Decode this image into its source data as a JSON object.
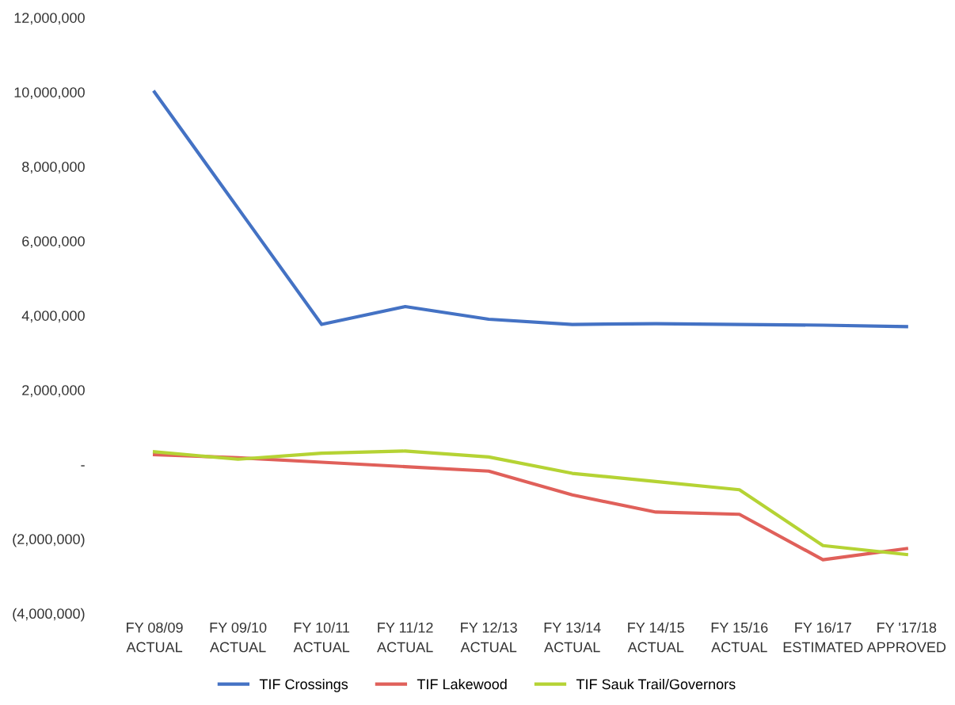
{
  "chart_data": {
    "type": "line",
    "categories": [
      "FY 08/09\nACTUAL",
      "FY 09/10\nACTUAL",
      "FY 10/11\nACTUAL",
      "FY 11/12\nACTUAL",
      "FY 12/13\nACTUAL",
      "FY 13/14\nACTUAL",
      "FY 14/15\nACTUAL",
      "FY 15/16\nACTUAL",
      "FY 16/17\nESTIMATED",
      "FY '17/18\nAPPROVED"
    ],
    "series": [
      {
        "name": "TIF Crossings",
        "color": "#4472c4",
        "values": [
          10000000,
          6880000,
          3760000,
          4240000,
          3900000,
          3760000,
          3780000,
          3760000,
          3740000,
          3700000
        ]
      },
      {
        "name": "TIF Lakewood",
        "color": "#e0605a",
        "values": [
          260000,
          180000,
          60000,
          -60000,
          -180000,
          -820000,
          -1280000,
          -1340000,
          -2560000,
          -2260000
        ]
      },
      {
        "name": "TIF Sauk Trail/Governors",
        "color": "#b5d334",
        "values": [
          340000,
          140000,
          300000,
          360000,
          200000,
          -240000,
          -460000,
          -680000,
          -2180000,
          -2420000
        ]
      }
    ],
    "ylim": [
      -4000000,
      12000000
    ],
    "yticks": [
      {
        "value": -4000000,
        "label": "(4,000,000)"
      },
      {
        "value": -2000000,
        "label": "(2,000,000)"
      },
      {
        "value": 0,
        "label": "-"
      },
      {
        "value": 2000000,
        "label": "2,000,000"
      },
      {
        "value": 4000000,
        "label": "4,000,000"
      },
      {
        "value": 6000000,
        "label": "6,000,000"
      },
      {
        "value": 8000000,
        "label": "8,000,000"
      },
      {
        "value": 10000000,
        "label": "10,000,000"
      },
      {
        "value": 12000000,
        "label": "12,000,000"
      }
    ],
    "grid": false,
    "legend": "bottom",
    "marker": "none",
    "line_style": "solid"
  }
}
